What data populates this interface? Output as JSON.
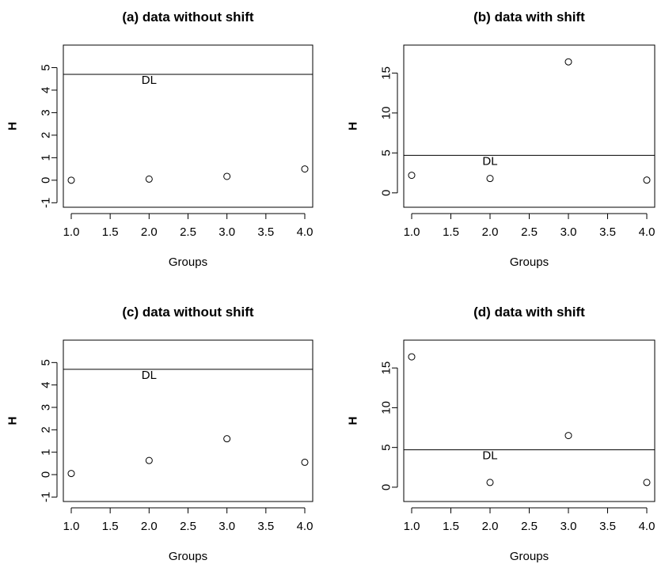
{
  "chart_data": [
    {
      "type": "scatter",
      "title": "(a) data without shift",
      "xlabel": "Groups",
      "ylabel": "H",
      "xlim": [
        1,
        4
      ],
      "ylim": [
        -1.2,
        6.0
      ],
      "xticks": [
        "1.0",
        "1.5",
        "2.0",
        "2.5",
        "3.0",
        "3.5",
        "4.0"
      ],
      "yticks": [
        "-1",
        "0",
        "1",
        "2",
        "3",
        "4",
        "5"
      ],
      "x": [
        1,
        2,
        3,
        4
      ],
      "y": [
        0.0,
        0.05,
        0.17,
        0.5
      ],
      "hline": {
        "label": "DL",
        "value": 4.7
      },
      "grid": false,
      "marker": "open-circle"
    },
    {
      "type": "scatter",
      "title": "(b) data with shift",
      "xlabel": "Groups",
      "ylabel": "H",
      "xlim": [
        1,
        4
      ],
      "ylim": [
        -1.8,
        18.5
      ],
      "xticks": [
        "1.0",
        "1.5",
        "2.0",
        "2.5",
        "3.0",
        "3.5",
        "4.0"
      ],
      "yticks": [
        "0",
        "5",
        "10",
        "15"
      ],
      "x": [
        1,
        2,
        3,
        4
      ],
      "y": [
        2.2,
        1.8,
        16.4,
        1.6
      ],
      "hline": {
        "label": "DL",
        "value": 4.7
      },
      "grid": false,
      "marker": "open-circle"
    },
    {
      "type": "scatter",
      "title": "(c) data without shift",
      "xlabel": "Groups",
      "ylabel": "H",
      "xlim": [
        1,
        4
      ],
      "ylim": [
        -1.2,
        6.0
      ],
      "xticks": [
        "1.0",
        "1.5",
        "2.0",
        "2.5",
        "3.0",
        "3.5",
        "4.0"
      ],
      "yticks": [
        "-1",
        "0",
        "1",
        "2",
        "3",
        "4",
        "5"
      ],
      "x": [
        1,
        2,
        3,
        4
      ],
      "y": [
        0.05,
        0.63,
        1.6,
        0.55
      ],
      "hline": {
        "label": "DL",
        "value": 4.7
      },
      "grid": false,
      "marker": "open-circle"
    },
    {
      "type": "scatter",
      "title": "(d) data with shift",
      "xlabel": "Groups",
      "ylabel": "H",
      "xlim": [
        1,
        4
      ],
      "ylim": [
        -1.8,
        18.5
      ],
      "xticks": [
        "1.0",
        "1.5",
        "2.0",
        "2.5",
        "3.0",
        "3.5",
        "4.0"
      ],
      "yticks": [
        "0",
        "5",
        "10",
        "15"
      ],
      "x": [
        1,
        2,
        3,
        4
      ],
      "y": [
        16.4,
        0.6,
        6.5,
        0.6
      ],
      "hline": {
        "label": "DL",
        "value": 4.7
      },
      "grid": false,
      "marker": "open-circle"
    }
  ]
}
